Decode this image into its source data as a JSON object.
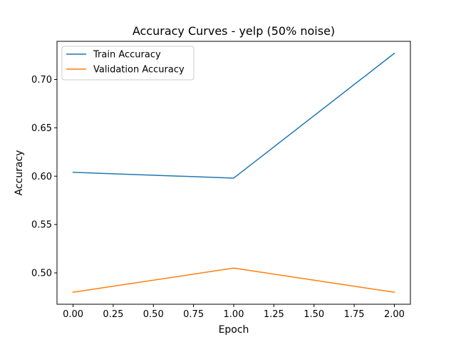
{
  "chart_data": {
    "type": "line",
    "title": "Accuracy Curves - yelp (50% noise)",
    "xlabel": "Epoch",
    "ylabel": "Accuracy",
    "x": [
      0,
      1,
      2
    ],
    "series": [
      {
        "name": "Train Accuracy",
        "color": "#1f77b4",
        "values": [
          0.604,
          0.598,
          0.727
        ]
      },
      {
        "name": "Validation Accuracy",
        "color": "#ff7f0e",
        "values": [
          0.48,
          0.505,
          0.48
        ]
      }
    ],
    "xlim": [
      -0.1,
      2.1
    ],
    "ylim": [
      0.4676,
      0.7394
    ],
    "xticks": [
      0.0,
      0.25,
      0.5,
      0.75,
      1.0,
      1.25,
      1.5,
      1.75,
      2.0
    ],
    "xtick_labels": [
      "0.00",
      "0.25",
      "0.50",
      "0.75",
      "1.00",
      "1.25",
      "1.50",
      "1.75",
      "2.00"
    ],
    "yticks": [
      0.5,
      0.55,
      0.6,
      0.65,
      0.7
    ],
    "ytick_labels": [
      "0.50",
      "0.55",
      "0.60",
      "0.65",
      "0.70"
    ],
    "grid": false,
    "legend_position": "upper-left"
  }
}
